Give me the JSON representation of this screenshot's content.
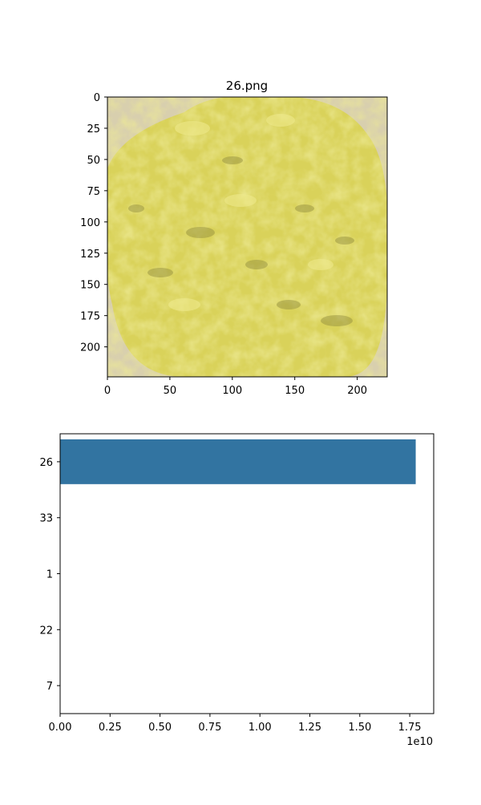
{
  "chart_data": [
    {
      "type": "image",
      "title": "26.png",
      "image_size": [
        224,
        224
      ],
      "xlim": [
        0,
        224
      ],
      "ylim": [
        224,
        0
      ],
      "xticks": [
        0,
        50,
        100,
        150,
        200
      ],
      "yticks": [
        0,
        25,
        50,
        75,
        100,
        125,
        150,
        175,
        200
      ],
      "colors": {
        "background": "#d8cfae",
        "food": "#d9d25a",
        "highlight": "#efe98c",
        "shadow": "#8f8a3c"
      }
    },
    {
      "type": "bar",
      "orientation": "horizontal",
      "categories": [
        "26",
        "33",
        "1",
        "22",
        "7"
      ],
      "values": [
        17800000000,
        0,
        0,
        0,
        0
      ],
      "xlim": [
        0,
        18700000000
      ],
      "xticks": [
        0,
        0.25,
        0.5,
        0.75,
        1.0,
        1.25,
        1.5,
        1.75
      ],
      "xtick_labels": [
        "0.00",
        "0.25",
        "0.50",
        "0.75",
        "1.00",
        "1.25",
        "1.50",
        "1.75"
      ],
      "offset_text": "1e10",
      "bar_color": "#3274a1"
    }
  ]
}
